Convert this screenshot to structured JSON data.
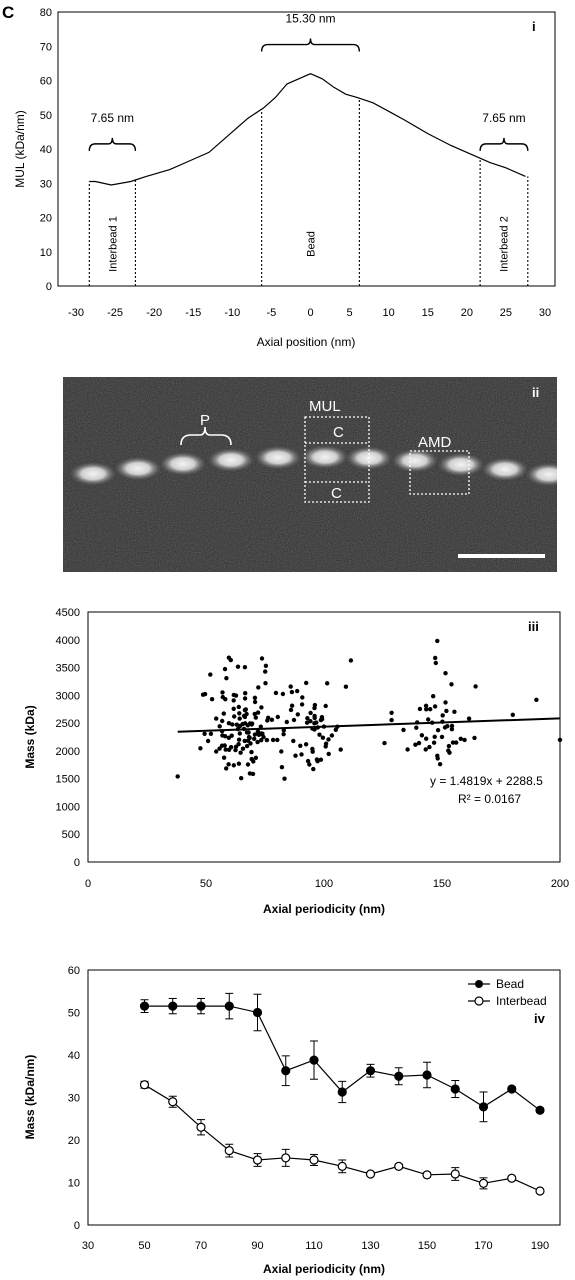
{
  "panel_letter": "C",
  "chart_data": [
    {
      "id": "i",
      "panel_label": "i",
      "type": "line",
      "xlabel": "Axial position (nm)",
      "ylabel": "MUL (kDa/nm)",
      "xlim": [
        -30,
        30
      ],
      "ylim": [
        0,
        80
      ],
      "x_ticks": [
        "-30",
        "-25",
        "-20",
        "-15",
        "-10",
        "-5",
        "0",
        "5",
        "10",
        "15",
        "20",
        "25",
        "30"
      ],
      "y_ticks": [
        "0",
        "10",
        "20",
        "30",
        "40",
        "50",
        "60",
        "70",
        "80"
      ],
      "x": [
        -28.3,
        -27.5,
        -25.5,
        -23.0,
        -21.0,
        -18.0,
        -15.5,
        -13.0,
        -10.0,
        -8.0,
        -6.0,
        -4.5,
        -3.0,
        -1.5,
        0.0,
        1.5,
        3.0,
        4.5,
        6.0,
        8.0,
        10.0,
        12.0,
        15.0,
        18.0,
        21.0,
        23.0,
        25.0,
        27.5
      ],
      "y": [
        30.5,
        30.5,
        29.5,
        30.5,
        32.0,
        34.0,
        36.5,
        39.0,
        45.0,
        49.0,
        52.0,
        55.0,
        59.0,
        60.5,
        62.0,
        60.5,
        58.0,
        56.0,
        55.0,
        53.5,
        51.0,
        48.5,
        44.5,
        41.0,
        38.0,
        36.0,
        34.5,
        32.0
      ],
      "vertical_dashed_lines": [
        -28.3,
        -22.4,
        -6.25,
        6.25,
        21.7,
        27.8
      ],
      "annotations": [
        {
          "text": "7.65 nm",
          "from": -28.3,
          "to": -22.4,
          "level": 41.5
        },
        {
          "text": "15.30 nm",
          "from": -6.25,
          "to": 6.25,
          "level": 70.5
        },
        {
          "text": "7.65 nm",
          "from": 21.7,
          "to": 27.8,
          "level": 41.5
        }
      ],
      "region_labels": [
        {
          "text": "Interbead 1",
          "x": -25.3
        },
        {
          "text": "Bead",
          "x": 0
        },
        {
          "text": "Interbead 2",
          "x": 24.7
        }
      ]
    },
    {
      "id": "iii",
      "panel_label": "iii",
      "type": "scatter",
      "xlabel": "Axial periodicity (nm)",
      "ylabel": "Mass (kDa)",
      "xlim": [
        0,
        200
      ],
      "ylim": [
        0,
        4500
      ],
      "x_ticks": [
        "0",
        "50",
        "100",
        "150",
        "200"
      ],
      "y_ticks": [
        "0",
        "500",
        "1000",
        "1500",
        "2000",
        "2500",
        "3000",
        "3500",
        "4000",
        "4500"
      ],
      "point_count": 230,
      "x_range": [
        38,
        200
      ],
      "y_range": [
        1500,
        4000
      ],
      "trendline": {
        "slope": 1.4819,
        "intercept": 2288.5
      },
      "equation": "y = 1.4819x + 2288.5",
      "r_squared": "R² = 0.0167"
    },
    {
      "id": "iv",
      "panel_label": "iv",
      "type": "line",
      "xlabel": "Axial periodicity (nm)",
      "ylabel": "Mass (kDa/nm)",
      "xlim": [
        30,
        190
      ],
      "ylim": [
        0,
        60
      ],
      "x_ticks": [
        "30",
        "50",
        "70",
        "90",
        "110",
        "130",
        "150",
        "170",
        "190"
      ],
      "y_ticks": [
        "0",
        "10",
        "20",
        "30",
        "40",
        "50",
        "60"
      ],
      "legend_position": "top-right",
      "x": [
        50,
        60,
        70,
        80,
        90,
        100,
        110,
        120,
        130,
        140,
        150,
        160,
        170,
        180,
        190
      ],
      "series": [
        {
          "name": "Bead",
          "marker": "filled-circle",
          "values": [
            51.5,
            51.5,
            51.5,
            51.5,
            50.0,
            36.3,
            38.8,
            31.3,
            36.3,
            35.0,
            35.3,
            32.0,
            27.8,
            32.0,
            27.0
          ],
          "errors": [
            1.5,
            1.8,
            1.8,
            3.0,
            4.3,
            3.5,
            4.5,
            2.5,
            1.5,
            2.0,
            3.0,
            2.0,
            3.5,
            0.5,
            0.5
          ]
        },
        {
          "name": "Interbead",
          "marker": "open-circle",
          "values": [
            33.0,
            29.0,
            23.0,
            17.5,
            15.3,
            15.8,
            15.3,
            13.8,
            12.0,
            13.8,
            11.8,
            12.0,
            9.8,
            11.0,
            8.0
          ],
          "errors": [
            0.8,
            1.3,
            1.8,
            1.5,
            1.5,
            2.0,
            1.3,
            1.5,
            0.5,
            0.5,
            0.5,
            1.5,
            1.3,
            0.5,
            0.3
          ]
        }
      ]
    }
  ],
  "micrograph": {
    "panel_label": "ii",
    "labels": {
      "periodicity": "P",
      "mul": "MUL",
      "c_upper": "C",
      "c_lower": "C",
      "amd": "AMD"
    }
  }
}
